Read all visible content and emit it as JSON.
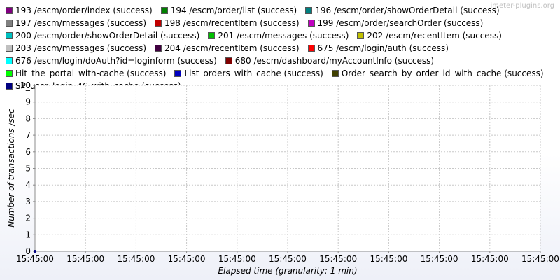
{
  "watermark": "jmeter-plugins.org",
  "chart_data": {
    "type": "line",
    "title": "",
    "xlabel": "Elapsed time (granularity: 1 min)",
    "ylabel": "Number of transactions /sec",
    "ylim": [
      0,
      10
    ],
    "y_ticks": [
      "0",
      "1",
      "2",
      "3",
      "4",
      "5",
      "6",
      "7",
      "8",
      "9",
      "10"
    ],
    "x_ticks": [
      "15:45:00",
      "15:45:00",
      "15:45:00",
      "15:45:00",
      "15:45:00",
      "15:45:00",
      "15:45:00",
      "15:45:00",
      "15:45:00",
      "15:45:00",
      "15:45:00"
    ],
    "grid": true,
    "legend_position": "top",
    "series": [
      {
        "name": "193 /escm/order/index (success)",
        "color": "#800080",
        "points": []
      },
      {
        "name": "194 /escm/order/list (success)",
        "color": "#008000",
        "points": []
      },
      {
        "name": "196 /escm/order/showOrderDetail (success)",
        "color": "#008080",
        "points": []
      },
      {
        "name": "197 /escm/messages (success)",
        "color": "#808080",
        "points": []
      },
      {
        "name": "198 /escm/recentItem (success)",
        "color": "#c00000",
        "points": []
      },
      {
        "name": "199 /escm/order/searchOrder (success)",
        "color": "#c000c0",
        "points": []
      },
      {
        "name": "200 /escm/order/showOrderDetail (success)",
        "color": "#00c0c0",
        "points": []
      },
      {
        "name": "201 /escm/messages (success)",
        "color": "#00c000",
        "points": []
      },
      {
        "name": "202 /escm/recentItem (success)",
        "color": "#c0c000",
        "points": []
      },
      {
        "name": "203 /escm/messages (success)",
        "color": "#c0c0c0",
        "points": []
      },
      {
        "name": "204 /escm/recentItem (success)",
        "color": "#400040",
        "points": []
      },
      {
        "name": "675 /escm/login/auth (success)",
        "color": "#ff0000",
        "points": []
      },
      {
        "name": "676 /escm/login/doAuth?id=loginform (success)",
        "color": "#00ffff",
        "points": []
      },
      {
        "name": "680 /escm/dashboard/myAccountInfo (success)",
        "color": "#800000",
        "points": []
      },
      {
        "name": "Hit_the_portal_with-cache (success)",
        "color": "#00ff00",
        "points": []
      },
      {
        "name": "List_orders_with_cache (success)",
        "color": "#0000c0",
        "points": []
      },
      {
        "name": "Order_search_by_order_id_with_cache (success)",
        "color": "#404000",
        "points": []
      },
      {
        "name": "SP_user_login_46_with_cache (success)",
        "color": "#000080",
        "points": [
          {
            "x": "15:45:00",
            "y": 0
          }
        ]
      }
    ]
  }
}
